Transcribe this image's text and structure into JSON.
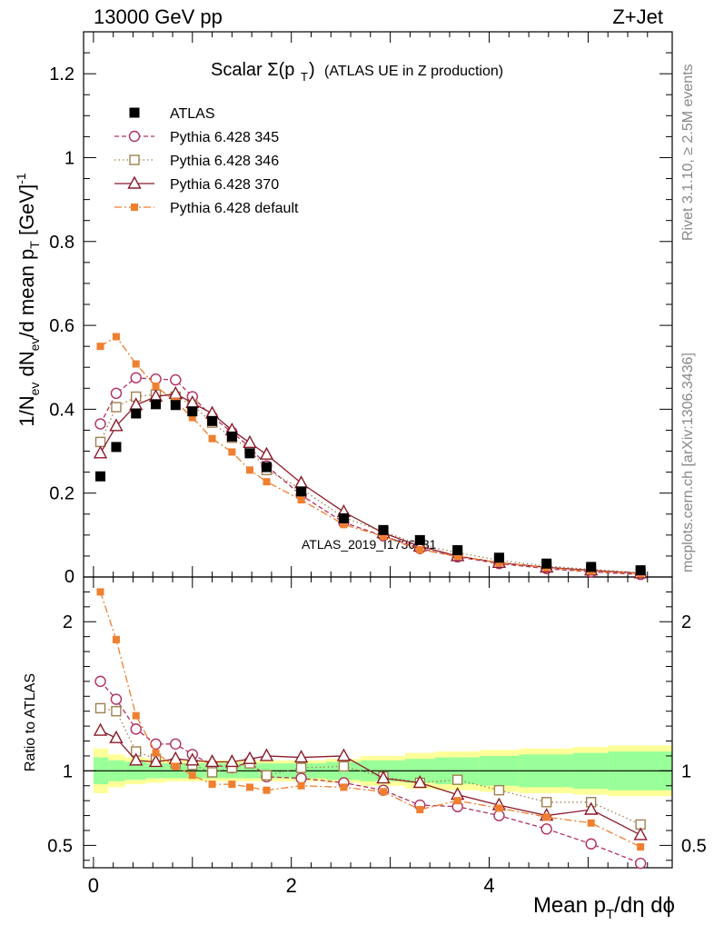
{
  "header": {
    "left": "13000 GeV pp",
    "right": "Z+Jet"
  },
  "plot_title": "Scalar Σ(p_T) (ATLAS UE in Z production)",
  "side_labels": {
    "rivet": "Rivet 3.1.10, ≥ 2.5M events",
    "mcplots": "mcplots.cern.ch [arXiv:1306.3436]"
  },
  "watermark": "ATLAS_2019_I1736531",
  "axes": {
    "xlabel": "Mean p_T/dη dϕ",
    "ylabel_main": "1/N_ev dN_ev/d mean p_T [GeV]^-1",
    "ylabel_ratio": "Ratio to ATLAS"
  },
  "chart_data": {
    "type": "scatter",
    "title": "Scalar Σ(p_T) (ATLAS UE in Z production)",
    "xlabel": "Mean p_T/dη dϕ",
    "ylabel": "1/N_ev dN_ev/d mean p_T [GeV]^-1",
    "xlim": [
      -0.1,
      5.85
    ],
    "ylim": [
      0,
      1.3
    ],
    "ratio_ylim": [
      0.35,
      2.3
    ],
    "x_ticks": [
      0,
      2,
      4
    ],
    "y_ticks": [
      0.2,
      0.4,
      0.6,
      0.8,
      1,
      1.2
    ],
    "y_tick_labels": [
      "0.2",
      "0.4",
      "0.6",
      "0.8",
      "1",
      "1.2"
    ],
    "ratio_ticks": [
      0.5,
      1,
      2
    ],
    "ratio_tick_labels": [
      "0.5",
      "1",
      "2"
    ],
    "y_zero_label": "0",
    "legend_position": "top-left",
    "x": [
      0.07,
      0.23,
      0.43,
      0.63,
      0.83,
      1.0,
      1.2,
      1.4,
      1.58,
      1.75,
      2.1,
      2.53,
      2.93,
      3.3,
      3.68,
      4.1,
      4.58,
      5.03,
      5.53
    ],
    "band_edges": [
      0,
      0.15,
      0.32,
      0.53,
      0.73,
      0.92,
      1.1,
      1.3,
      1.5,
      1.67,
      1.85,
      2.35,
      2.7,
      3.15,
      3.45,
      3.9,
      4.3,
      4.85,
      5.2,
      5.85
    ],
    "band_inner": [
      0.09,
      0.07,
      0.06,
      0.05,
      0.05,
      0.05,
      0.05,
      0.05,
      0.05,
      0.05,
      0.05,
      0.06,
      0.07,
      0.08,
      0.09,
      0.1,
      0.11,
      0.12,
      0.13
    ],
    "band_outer": [
      0.15,
      0.11,
      0.09,
      0.08,
      0.07,
      0.07,
      0.07,
      0.07,
      0.07,
      0.07,
      0.07,
      0.08,
      0.1,
      0.12,
      0.13,
      0.14,
      0.15,
      0.16,
      0.17
    ],
    "series": [
      {
        "name": "ATLAS",
        "color": "#000000",
        "marker": "filled-square",
        "line": "none",
        "values": [
          0.24,
          0.31,
          0.39,
          0.412,
          0.41,
          0.395,
          0.372,
          0.335,
          0.295,
          0.262,
          0.204,
          0.14,
          0.112,
          0.088,
          0.064,
          0.046,
          0.032,
          0.024,
          0.016
        ],
        "ratio": [
          1,
          1,
          1,
          1,
          1,
          1,
          1,
          1,
          1,
          1,
          1,
          1,
          1,
          1,
          1,
          1,
          1,
          1,
          1
        ]
      },
      {
        "name": "Pythia 6.428 345",
        "color": "#b03060",
        "marker": "open-circle",
        "line": "dashed",
        "values": [
          0.365,
          0.438,
          0.475,
          0.472,
          0.47,
          0.43,
          0.382,
          0.345,
          0.31,
          0.265,
          0.195,
          0.13,
          0.098,
          0.068,
          0.048,
          0.032,
          0.02,
          0.012,
          0.006
        ],
        "ratio": [
          1.6,
          1.48,
          1.28,
          1.18,
          1.18,
          1.11,
          1.04,
          1.02,
          1.06,
          0.96,
          0.95,
          0.92,
          0.87,
          0.77,
          0.76,
          0.7,
          0.61,
          0.51,
          0.38
        ]
      },
      {
        "name": "Pythia 6.428 346",
        "color": "#a08050",
        "marker": "open-square",
        "line": "dotted",
        "values": [
          0.322,
          0.405,
          0.43,
          0.435,
          0.43,
          0.41,
          0.368,
          0.332,
          0.305,
          0.255,
          0.21,
          0.142,
          0.108,
          0.077,
          0.058,
          0.04,
          0.026,
          0.018,
          0.01
        ],
        "ratio": [
          1.42,
          1.4,
          1.13,
          1.08,
          1.05,
          1.04,
          0.99,
          1.02,
          1.05,
          0.97,
          1.02,
          1.03,
          0.96,
          0.92,
          0.94,
          0.87,
          0.79,
          0.79,
          0.64
        ]
      },
      {
        "name": "Pythia 6.428 370",
        "color": "#8b1a2b",
        "marker": "open-triangle",
        "line": "solid",
        "values": [
          0.295,
          0.36,
          0.41,
          0.43,
          0.437,
          0.415,
          0.39,
          0.35,
          0.32,
          0.292,
          0.224,
          0.155,
          0.105,
          0.073,
          0.05,
          0.034,
          0.023,
          0.016,
          0.009
        ],
        "ratio": [
          1.27,
          1.22,
          1.07,
          1.06,
          1.08,
          1.07,
          1.06,
          1.06,
          1.08,
          1.1,
          1.09,
          1.1,
          0.95,
          0.92,
          0.84,
          0.77,
          0.7,
          0.74,
          0.57
        ]
      },
      {
        "name": "Pythia 6.428 default",
        "color": "#f07f30",
        "marker": "filled-square-small",
        "line": "dashdot",
        "values": [
          0.55,
          0.573,
          0.508,
          0.455,
          0.418,
          0.38,
          0.33,
          0.298,
          0.255,
          0.227,
          0.184,
          0.125,
          0.097,
          0.065,
          0.05,
          0.034,
          0.022,
          0.014,
          0.008
        ],
        "ratio": [
          2.2,
          1.88,
          1.37,
          1.12,
          1.03,
          0.97,
          0.91,
          0.91,
          0.89,
          0.87,
          0.9,
          0.89,
          0.86,
          0.74,
          0.8,
          0.75,
          0.69,
          0.65,
          0.49
        ]
      }
    ]
  },
  "colors": {
    "band_outer": "#ffff99",
    "band_inner": "#99ff99"
  }
}
